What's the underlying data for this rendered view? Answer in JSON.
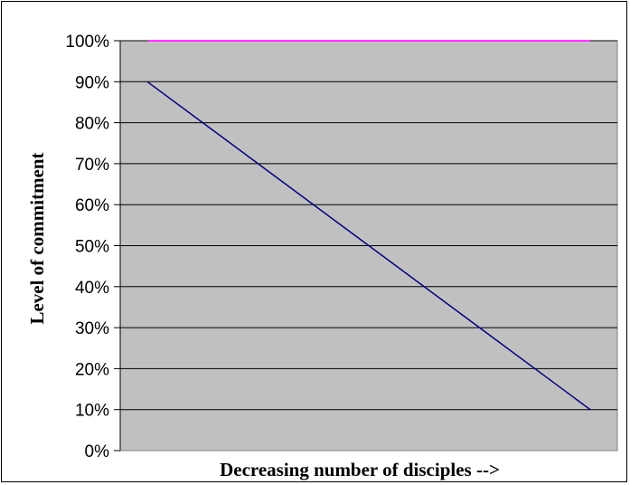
{
  "chart_data": {
    "type": "line",
    "xlabel": "Decreasing number of disciples -->",
    "ylabel": "Level of commitment",
    "x": [
      0,
      1
    ],
    "ylim": [
      0,
      1
    ],
    "y_ticks": [
      "0%",
      "10%",
      "20%",
      "30%",
      "40%",
      "50%",
      "60%",
      "70%",
      "80%",
      "90%",
      "100%"
    ],
    "grid": true,
    "legend": "none",
    "plot_background": "#c0c0c0",
    "series": [
      {
        "values": [
          1.0,
          1.0
        ],
        "color": "#ff00ff"
      },
      {
        "values": [
          0.9,
          0.1
        ],
        "color": "#000080"
      }
    ]
  }
}
